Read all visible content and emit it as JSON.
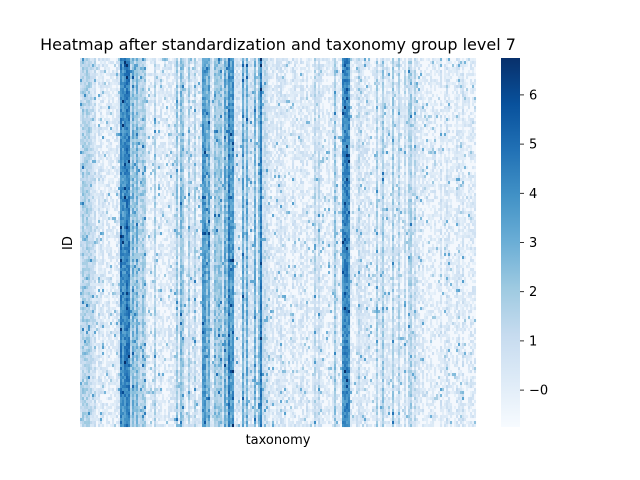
{
  "chart_data": {
    "type": "heatmap",
    "title": "Heatmap after standardization and taxonomy group level 7",
    "xlabel": "taxonomy",
    "ylabel": "ID",
    "colormap": "Blues",
    "value_range": [
      -0.75,
      6.75
    ],
    "colorbar_ticks": [
      0,
      1,
      2,
      3,
      4,
      5,
      6
    ],
    "colorbar_tick_labels": [
      "−0",
      "1",
      "2",
      "3",
      "4",
      "5",
      "6"
    ],
    "x_ticks_shown": false,
    "y_ticks_shown": false,
    "grid": false,
    "colorbar_placement": "right"
  }
}
